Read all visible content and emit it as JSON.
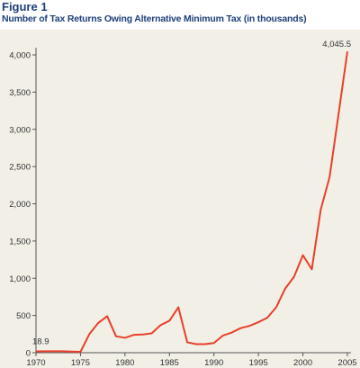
{
  "figure_label": "Figure 1",
  "chart_data": {
    "type": "line",
    "title": "Number of Tax Returns Owing Alternative Minimum Tax (in thousands)",
    "xlabel": "",
    "ylabel": "",
    "xlim": [
      1970,
      2005
    ],
    "ylim": [
      0,
      4000
    ],
    "x_ticks": [
      1970,
      1975,
      1980,
      1985,
      1990,
      1995,
      2000,
      2005
    ],
    "y_ticks": [
      0,
      500,
      1000,
      1500,
      2000,
      2500,
      3000,
      3500,
      4000
    ],
    "y_tick_labels": [
      "0",
      "500",
      "1,000",
      "1,500",
      "2,000",
      "2,500",
      "3,000",
      "3,500",
      "4,000"
    ],
    "grid": false,
    "line_color": "#e8402a",
    "series": [
      {
        "x": [
          1970,
          1971,
          1972,
          1973,
          1974,
          1975,
          1976,
          1977,
          1978,
          1979,
          1980,
          1981,
          1982,
          1983,
          1984,
          1985,
          1986,
          1987,
          1988,
          1989,
          1990,
          1991,
          1992,
          1993,
          1994,
          1995,
          1996,
          1997,
          1998,
          1999,
          2000,
          2001,
          2002,
          2003,
          2004,
          2005
        ],
        "values": [
          18.9,
          19,
          20,
          19,
          15,
          12,
          250,
          400,
          490,
          220,
          200,
          240,
          245,
          260,
          370,
          430,
          610,
          140,
          115,
          115,
          130,
          230,
          270,
          330,
          360,
          410,
          470,
          610,
          860,
          1020,
          1310,
          1120,
          1920,
          2360,
          3200,
          4045.5
        ]
      }
    ],
    "annotations": [
      {
        "text": "18.9",
        "x": 1970,
        "y": 18.9
      },
      {
        "text": "4,045.5",
        "x": 2005,
        "y": 4045.5
      }
    ]
  }
}
